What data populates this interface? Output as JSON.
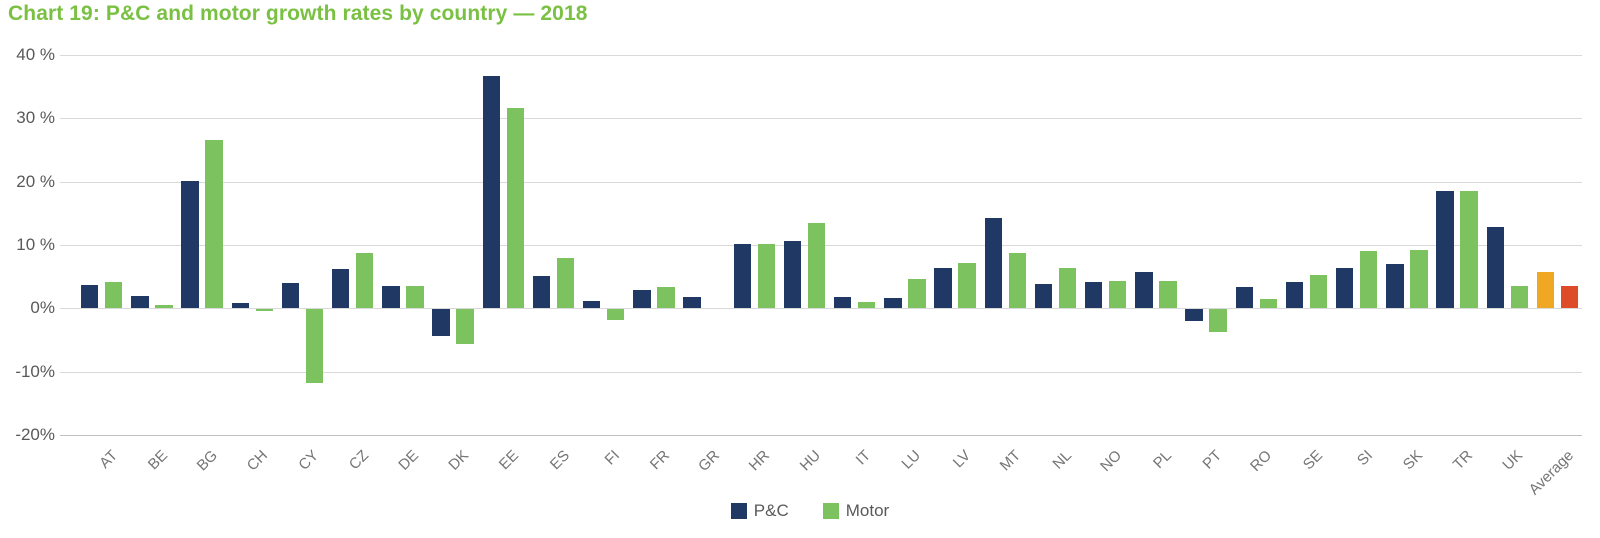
{
  "title": "Chart 19: P&C and motor growth rates by country — 2018",
  "legend": {
    "pnc_label": "P&C",
    "motor_label": "Motor"
  },
  "colors": {
    "title_green": "#7AC143",
    "pnc_navy": "#1F3864",
    "motor_green": "#7CC35F",
    "average_pnc_orange": "#EFA724",
    "average_motor_red": "#DE4B28",
    "gridline": "#D9D9D9",
    "bottom_axis": "#C0C0C0",
    "y_tick_text": "#595959",
    "x_tick_text": "#757575"
  },
  "chart_data": {
    "type": "bar",
    "title": "Chart 19: P&C and motor growth rates by country — 2018",
    "categories": [
      "AT",
      "BE",
      "BG",
      "CH",
      "CY",
      "CZ",
      "DE",
      "DK",
      "EE",
      "ES",
      "FI",
      "FR",
      "GR",
      "HR",
      "HU",
      "IT",
      "LU",
      "LV",
      "MT",
      "NL",
      "NO",
      "PL",
      "PT",
      "RO",
      "SE",
      "SI",
      "SK",
      "TR",
      "UK",
      "Average"
    ],
    "series": [
      {
        "name": "P&C",
        "values": [
          3.7,
          1.9,
          20.1,
          0.9,
          4.0,
          6.2,
          3.5,
          -4.2,
          36.7,
          5.1,
          1.2,
          2.9,
          1.8,
          10.1,
          10.6,
          1.8,
          1.6,
          6.3,
          14.2,
          3.8,
          4.1,
          5.7,
          -1.9,
          3.3,
          4.2,
          6.4,
          7.0,
          18.5,
          12.8,
          5.7
        ]
      },
      {
        "name": "Motor",
        "values": [
          4.2,
          0.5,
          26.5,
          -0.3,
          -11.7,
          8.7,
          3.5,
          -5.4,
          31.6,
          8.0,
          -1.7,
          3.4,
          null,
          10.1,
          13.4,
          1.0,
          4.6,
          7.1,
          8.7,
          6.3,
          4.3,
          4.3,
          -3.6,
          1.5,
          5.2,
          9.0,
          9.2,
          18.5,
          3.5,
          3.5
        ]
      }
    ],
    "highlight_group": {
      "category": "Average",
      "pnc_color": "#EFA724",
      "motor_color": "#DE4B28"
    },
    "y_tick_values": [
      40,
      30,
      20,
      10,
      0,
      -10,
      -20
    ],
    "y_tick_labels": [
      "40 %",
      "30 %",
      "20 %",
      "10 %",
      "0%",
      "-10%",
      "-20%"
    ],
    "ylim": [
      -20,
      40
    ],
    "unit": "%",
    "grid": "horizontal",
    "legend_entries": [
      "P&C",
      "Motor"
    ],
    "legend_position": "bottom-center"
  }
}
